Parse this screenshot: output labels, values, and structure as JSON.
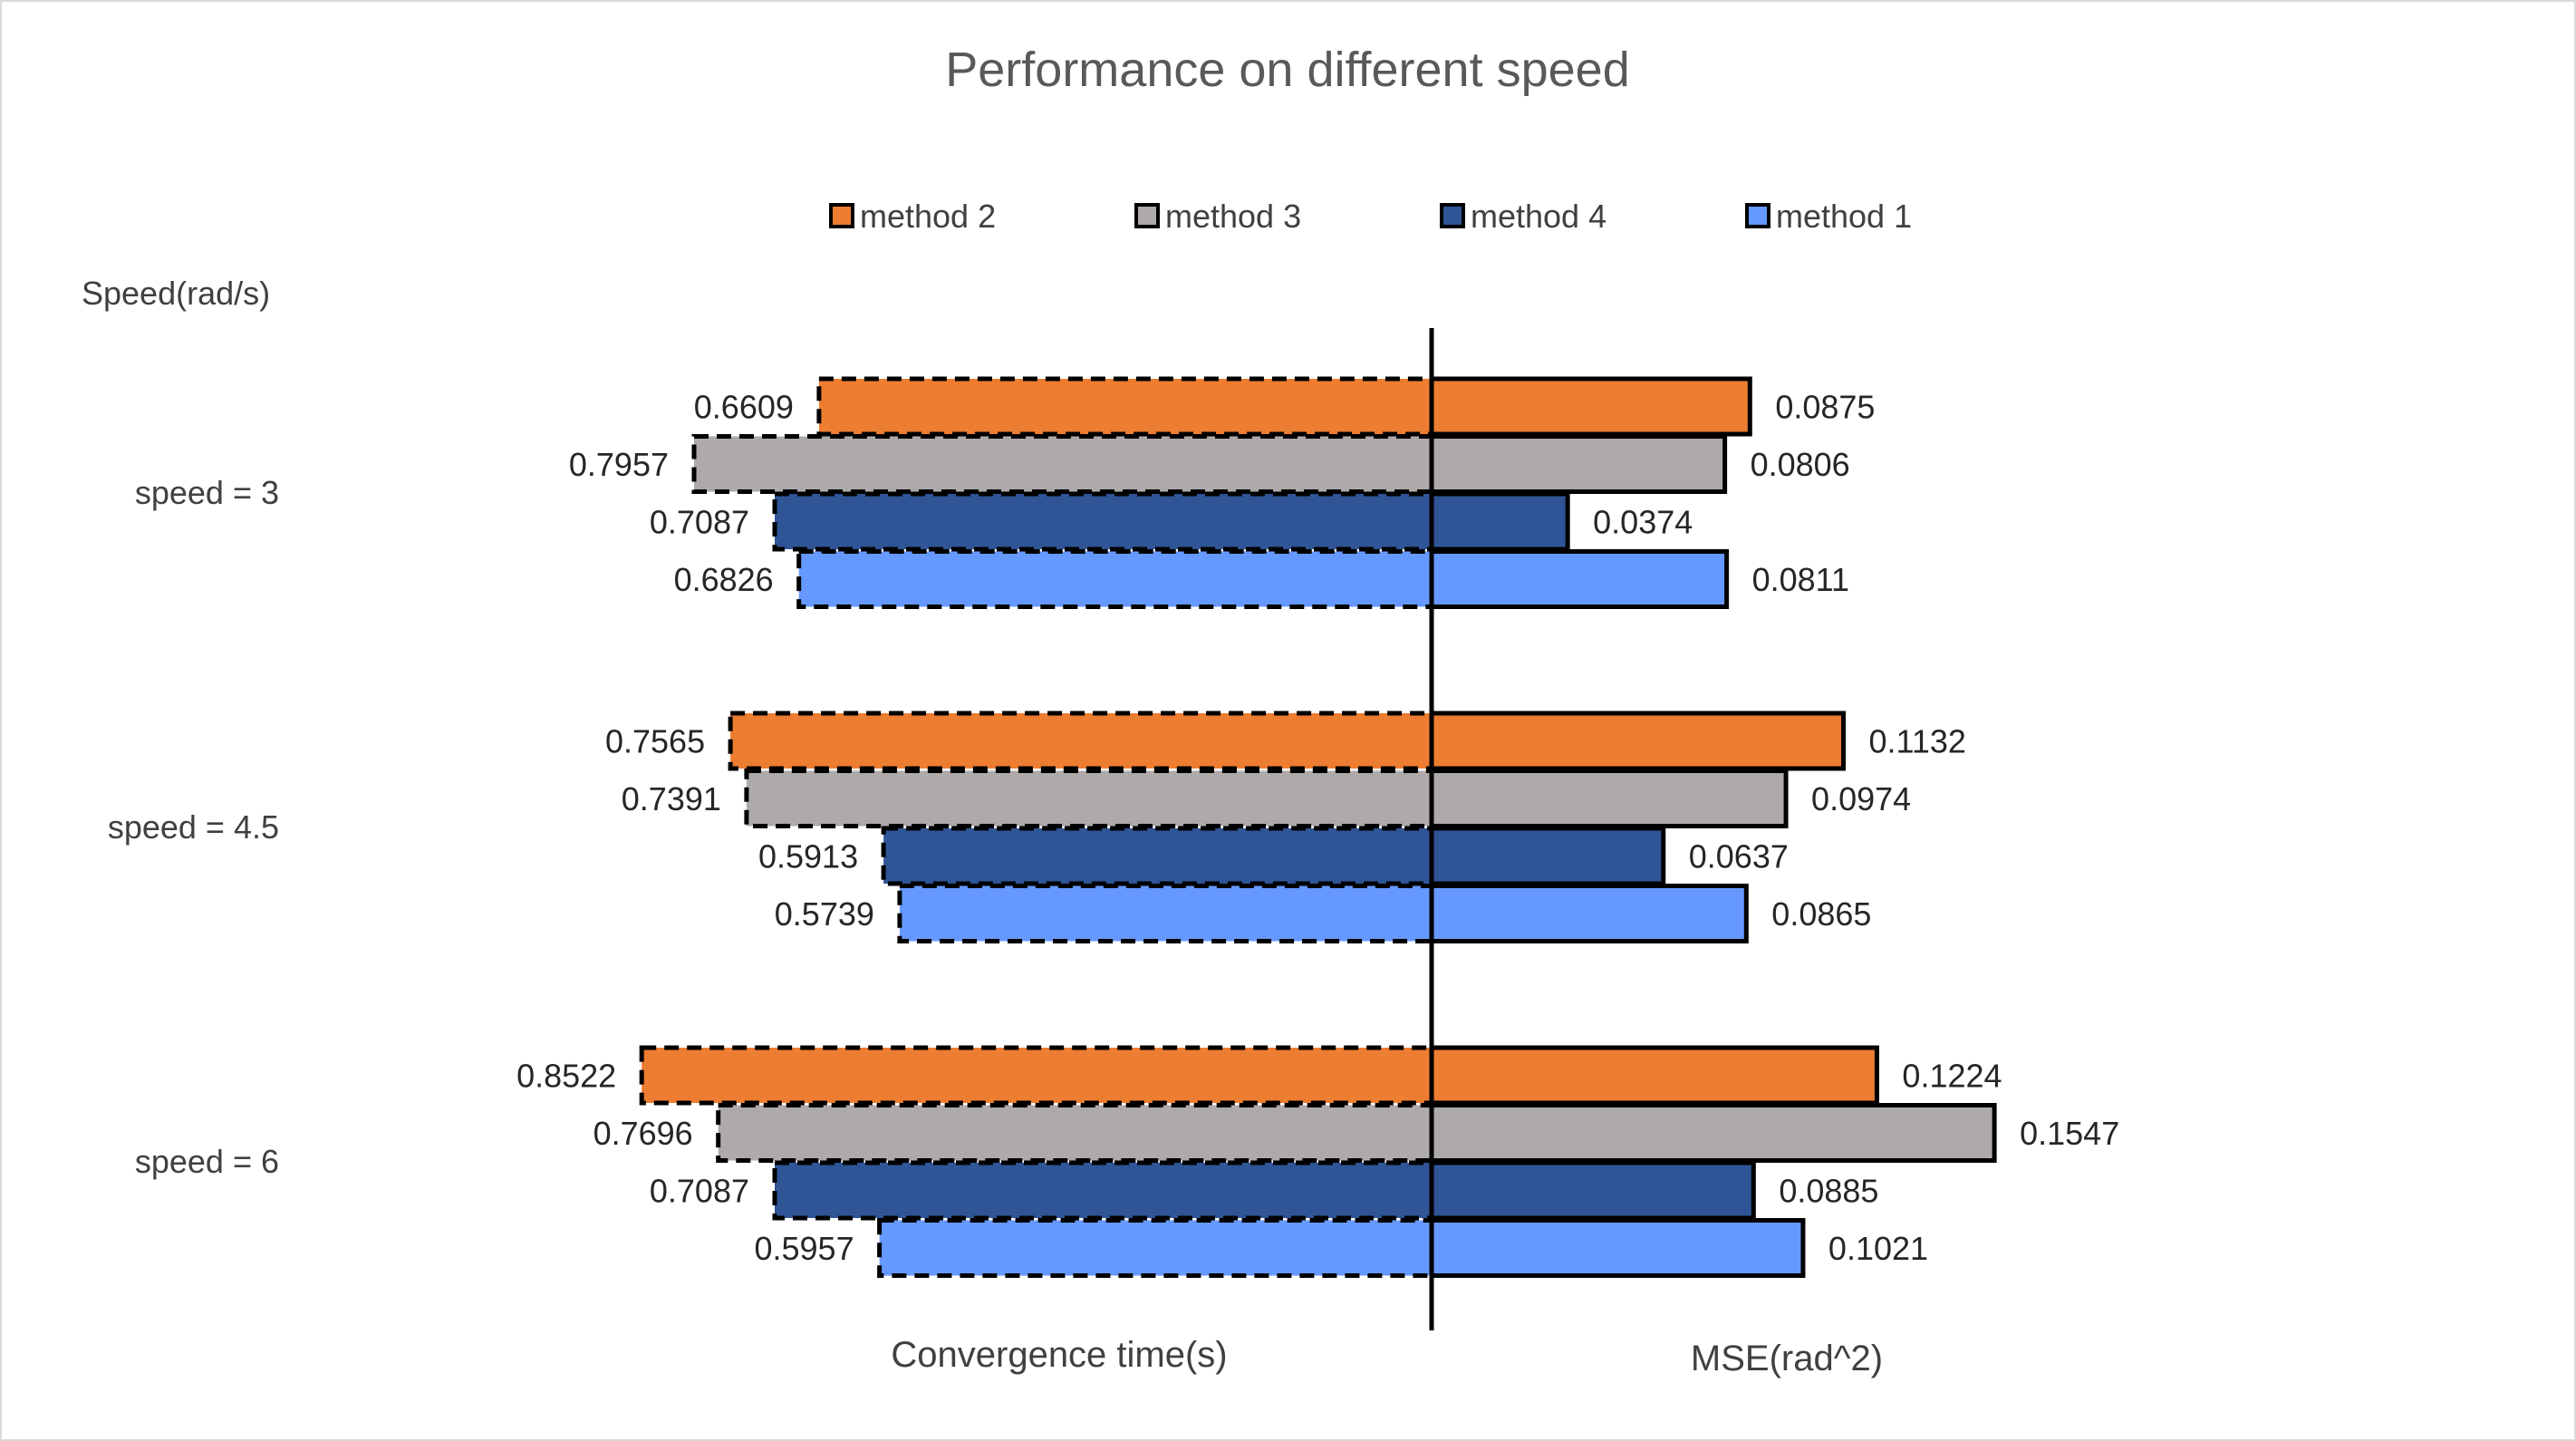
{
  "chart_data": {
    "type": "bar",
    "title": "Performance on different speed",
    "category_axis_title": "Speed(rad/s)",
    "categories": [
      "speed = 3",
      "speed = 4.5",
      "speed = 6"
    ],
    "left_panel": {
      "xlabel": "Convergence time(s)",
      "direction": "left",
      "border_style": "dashed"
    },
    "right_panel": {
      "xlabel": "MSE(rad^2)",
      "direction": "right",
      "border_style": "solid"
    },
    "legend_order": [
      "method 2",
      "method 3",
      "method 4",
      "method 1"
    ],
    "legend_position": "top",
    "series": [
      {
        "name": "method 2",
        "color": "#ED7D31",
        "convergence_time": [
          0.6609,
          0.7565,
          0.8522
        ],
        "mse": [
          0.0875,
          0.1132,
          0.1224
        ],
        "convergence_labels": [
          "0.6609",
          "0.7565",
          "0.8522"
        ],
        "mse_labels": [
          "0.0875",
          "0.1132",
          "0.1224"
        ]
      },
      {
        "name": "method 3",
        "color": "#AEAAAA",
        "convergence_time": [
          0.7957,
          0.7391,
          0.7696
        ],
        "mse": [
          0.0806,
          0.0974,
          0.1547
        ],
        "convergence_labels": [
          "0.7957",
          "0.7391",
          "0.7696"
        ],
        "mse_labels": [
          "0.0806",
          "0.0974",
          "0.1547"
        ]
      },
      {
        "name": "method 4",
        "color": "#2F5597",
        "convergence_time": [
          0.7087,
          0.5913,
          0.7087
        ],
        "mse": [
          0.0374,
          0.0637,
          0.0885
        ],
        "convergence_labels": [
          "0.7087",
          "0.5913",
          "0.7087"
        ],
        "mse_labels": [
          "0.0374",
          "0.0637",
          "0.0885"
        ]
      },
      {
        "name": "method 1",
        "color": "#6699FF",
        "convergence_time": [
          0.6826,
          0.5739,
          0.5957
        ],
        "mse": [
          0.0811,
          0.0865,
          0.1021
        ],
        "convergence_labels": [
          "0.6826",
          "0.5739",
          "0.5957"
        ],
        "mse_labels": [
          "0.0811",
          "0.0865",
          "0.1021"
        ]
      }
    ],
    "grid": false
  }
}
